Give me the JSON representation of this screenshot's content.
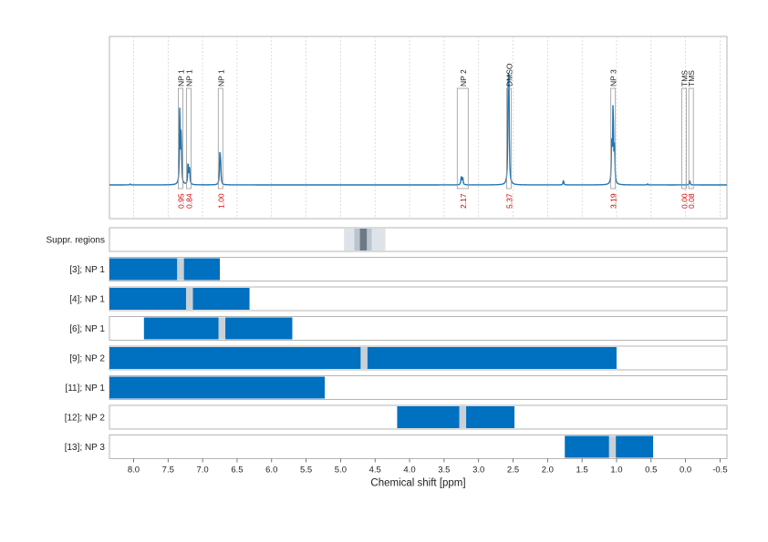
{
  "chart_data": {
    "type": "nmr-spectrum-with-range-bars",
    "xlabel": "Chemical shift [ppm]",
    "x_reversed": true,
    "xlim": [
      8.35,
      -0.6
    ],
    "x_ticks": [
      8.0,
      7.5,
      7.0,
      6.5,
      6.0,
      5.5,
      5.0,
      4.5,
      4.0,
      3.5,
      3.0,
      2.5,
      2.0,
      1.5,
      1.0,
      0.5,
      0.0,
      -0.5
    ],
    "x_tick_labels": [
      "8.0",
      "7.5",
      "7.0",
      "6.5",
      "6.0",
      "5.5",
      "5.0",
      "4.5",
      "4.0",
      "3.5",
      "3.0",
      "2.5",
      "2.0",
      "1.5",
      "1.0",
      "0.5",
      "0.0",
      "-0.5"
    ],
    "grid": true,
    "spectrum": {
      "color": "#1f77b4",
      "baseline": 0.0,
      "peaks": [
        {
          "ppm": 8.05,
          "height": 0.01
        },
        {
          "ppm": 7.33,
          "height": 0.85
        },
        {
          "ppm": 7.31,
          "height": 0.55
        },
        {
          "ppm": 7.21,
          "height": 0.25
        },
        {
          "ppm": 7.19,
          "height": 0.2
        },
        {
          "ppm": 6.75,
          "height": 0.28
        },
        {
          "ppm": 6.74,
          "height": 0.24
        },
        {
          "ppm": 3.25,
          "height": 0.1
        },
        {
          "ppm": 3.23,
          "height": 0.08
        },
        {
          "ppm": 2.57,
          "height": 1.0
        },
        {
          "ppm": 2.56,
          "height": 0.9
        },
        {
          "ppm": 1.77,
          "height": 0.05
        },
        {
          "ppm": 1.07,
          "height": 0.48
        },
        {
          "ppm": 1.05,
          "height": 0.88
        },
        {
          "ppm": 1.03,
          "height": 0.4
        },
        {
          "ppm": 0.55,
          "height": 0.01
        },
        {
          "ppm": -0.06,
          "height": 0.05
        }
      ]
    },
    "annotations": [
      {
        "label": "NP 1",
        "ppm": 7.32,
        "integral": "0.95"
      },
      {
        "label": "NP 1",
        "ppm": 7.2,
        "integral": "0.84"
      },
      {
        "label": "NP 1",
        "ppm": 6.74,
        "integral": "1.00"
      },
      {
        "label": "NP 2",
        "ppm": 3.23,
        "integral": "2.17"
      },
      {
        "label": "DMSO",
        "ppm": 2.56,
        "integral": "5.37"
      },
      {
        "label": "NP 3",
        "ppm": 1.05,
        "integral": "3.19"
      },
      {
        "label": "TMS",
        "ppm": 0.02,
        "integral": "0.00"
      },
      {
        "label": "TMS",
        "ppm": -0.08,
        "integral": "0.08"
      }
    ],
    "integral_color": "#cc0000",
    "bar_color": "#0070c0",
    "marker_color": "#c8d0d8",
    "suppression": {
      "label": "Suppr. regions",
      "outer": [
        4.95,
        4.35
      ],
      "middle": [
        4.8,
        4.55
      ],
      "inner": [
        4.72,
        4.62
      ]
    },
    "rows": [
      {
        "label": "[3]; NP 1",
        "range": [
          8.35,
          6.75
        ],
        "marker": 7.32
      },
      {
        "label": "[4]; NP 1",
        "range": [
          8.35,
          6.32
        ],
        "marker": 7.19
      },
      {
        "label": "[6]; NP 1",
        "range": [
          7.85,
          5.7
        ],
        "marker": 6.72
      },
      {
        "label": "[9]; NP 2",
        "range": [
          8.35,
          1.0
        ],
        "marker": 4.66
      },
      {
        "label": "[11]; NP 1",
        "range": [
          8.35,
          5.23
        ],
        "marker": null
      },
      {
        "label": "[12]; NP 2",
        "range": [
          4.18,
          2.48
        ],
        "marker": 3.23
      },
      {
        "label": "[13]; NP 3",
        "range": [
          1.75,
          0.47
        ],
        "marker": 1.06
      }
    ]
  }
}
